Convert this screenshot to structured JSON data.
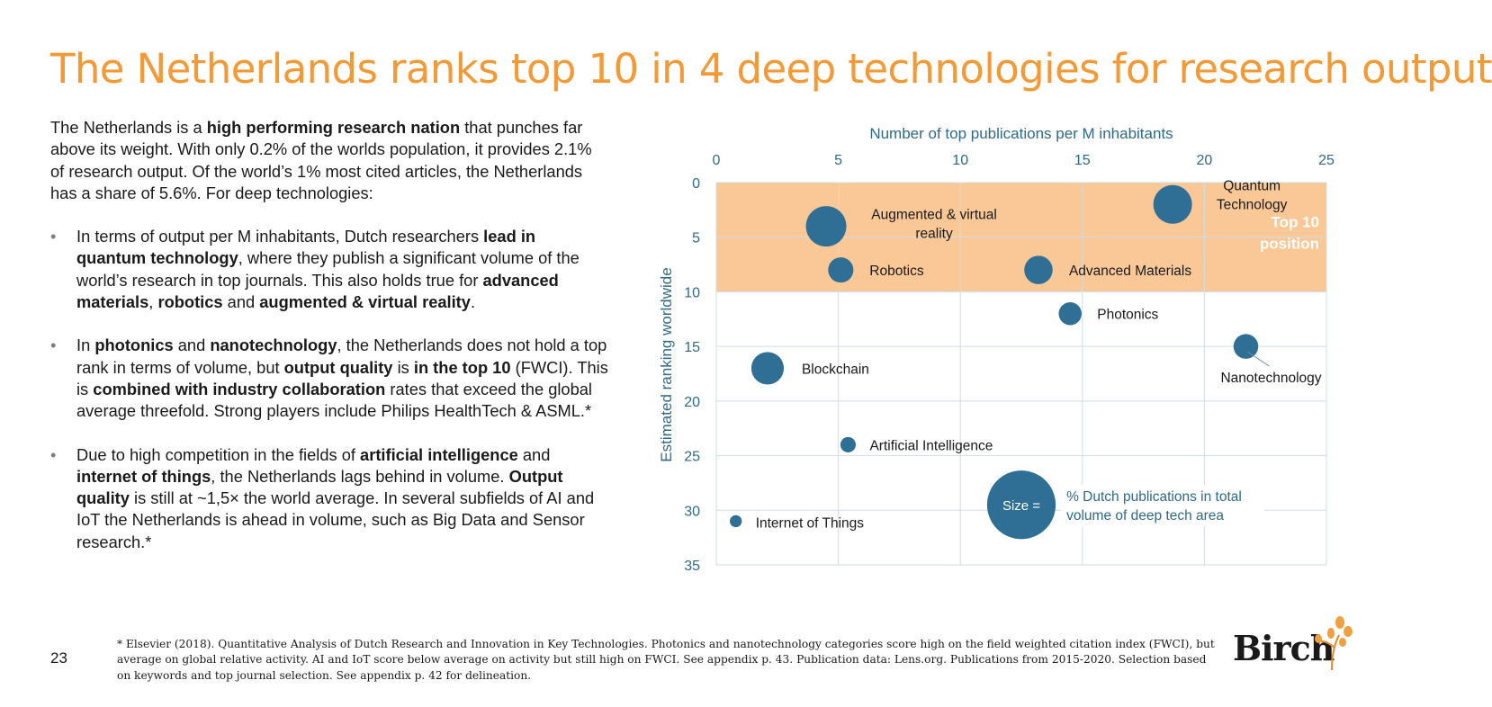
{
  "title": "The Netherlands ranks top 10 in 4 deep technologies for research output",
  "intro": [
    {
      "t": "The Netherlands is a ",
      "b": false
    },
    {
      "t": "high performing research nation",
      "b": true
    },
    {
      "t": " that punches far above its weight. With only 0.2% of the worlds population, it provides 2.1% of research output. Of the world’s 1% most cited articles, the Netherlands has a share of 5.6%. For deep technologies:",
      "b": false
    }
  ],
  "bullets": [
    [
      {
        "t": "In terms of output per M inhabitants, Dutch researchers ",
        "b": false
      },
      {
        "t": "lead in quantum technology",
        "b": true
      },
      {
        "t": ", where they publish a significant volume of the world’s research in top journals. This also holds true for ",
        "b": false
      },
      {
        "t": "advanced materials",
        "b": true
      },
      {
        "t": ", ",
        "b": false
      },
      {
        "t": "robotics",
        "b": true
      },
      {
        "t": " and ",
        "b": false
      },
      {
        "t": "augmented & virtual reality",
        "b": true
      },
      {
        "t": ".",
        "b": false
      }
    ],
    [
      {
        "t": "In ",
        "b": false
      },
      {
        "t": "photonics",
        "b": true
      },
      {
        "t": " and ",
        "b": false
      },
      {
        "t": "nanotechnology",
        "b": true
      },
      {
        "t": ", the Netherlands does not hold a top rank in terms of volume, but ",
        "b": false
      },
      {
        "t": "output quality",
        "b": true
      },
      {
        "t": " is ",
        "b": false
      },
      {
        "t": "in the top 10",
        "b": true
      },
      {
        "t": " (FWCI). This is ",
        "b": false
      },
      {
        "t": "combined with industry collaboration",
        "b": true
      },
      {
        "t": " rates that exceed the global average threefold. Strong players include Philips HealthTech & ASML.*",
        "b": false
      }
    ],
    [
      {
        "t": "Due to high competition in the fields of ",
        "b": false
      },
      {
        "t": "artificial intelligence",
        "b": true
      },
      {
        "t": " and ",
        "b": false
      },
      {
        "t": "internet of things",
        "b": true
      },
      {
        "t": ", the Netherlands lags behind in volume. ",
        "b": false
      },
      {
        "t": "Output quality",
        "b": true
      },
      {
        "t": " is still at ~1,5× the world average. In several subfields of AI and IoT the Netherlands is ahead in volume, such as Big Data and Sensor research.*",
        "b": false
      }
    ]
  ],
  "footnote": "* Elsevier (2018). Quantitative Analysis of Dutch Research and Innovation in Key Technologies. Photonics and nanotechnology categories score high on the field weighted citation index (FWCI), but average on global relative activity. AI and IoT score below average on activity but still high on FWCI. See appendix p. 43. Publication data: Lens.org. Publications from 2015-2020. Selection based on keywords and top journal selection. See appendix p. 42 for delineation.",
  "page_number": "23",
  "logo_text": "Birch",
  "colors": {
    "title": "#f39a36",
    "bubble": "#2f6f95",
    "band": "#f9c896",
    "axis_text": "#2e6a87",
    "grid": "#cfdde3"
  },
  "chart_data": {
    "type": "bubble",
    "xlabel": "Number of top publications per M inhabitants",
    "ylabel": "Estimated ranking worldwide",
    "xlim": [
      0,
      25
    ],
    "ylim": [
      0,
      35
    ],
    "xticks": [
      0,
      5,
      10,
      15,
      20,
      25
    ],
    "yticks": [
      0,
      5,
      10,
      15,
      20,
      25,
      30,
      35
    ],
    "x_axis_position": "top",
    "y_inverted": true,
    "highlight_band": {
      "from": 0,
      "to": 10,
      "label_lines": [
        "Top 10",
        "position"
      ]
    },
    "points": [
      {
        "name": "Quantum Technology",
        "label_lines": [
          "Quantum",
          "Technology"
        ],
        "x": 18.7,
        "y": 2,
        "size": 5.2
      },
      {
        "name": "Augmented & virtual reality",
        "label_lines": [
          "Augmented & virtual",
          "reality"
        ],
        "x": 4.5,
        "y": 4,
        "size": 5.7
      },
      {
        "name": "Robotics",
        "label_lines": [
          "Robotics"
        ],
        "x": 5.1,
        "y": 8,
        "size": 2.1
      },
      {
        "name": "Advanced Materials",
        "label_lines": [
          "Advanced Materials"
        ],
        "x": 13.2,
        "y": 8,
        "size": 2.7
      },
      {
        "name": "Photonics",
        "label_lines": [
          "Photonics"
        ],
        "x": 14.5,
        "y": 12,
        "size": 1.7
      },
      {
        "name": "Nanotechnology",
        "label_lines": [
          "Nanotechnology"
        ],
        "x": 21.7,
        "y": 15,
        "size": 2.0
      },
      {
        "name": "Blockchain",
        "label_lines": [
          "Blockchain"
        ],
        "x": 2.1,
        "y": 17,
        "size": 3.6
      },
      {
        "name": "Artificial Intelligence",
        "label_lines": [
          "Artificial Intelligence"
        ],
        "x": 5.4,
        "y": 24,
        "size": 0.7
      },
      {
        "name": "Internet of Things",
        "label_lines": [
          "Internet of Things"
        ],
        "x": 0.8,
        "y": 31,
        "size": 0.4
      }
    ],
    "size_legend": {
      "inside_label": "Size =",
      "text_lines": [
        "% Dutch publications in total",
        "volume of deep tech area"
      ],
      "x": 12.5,
      "y": 29.5,
      "size": 17.0
    }
  }
}
